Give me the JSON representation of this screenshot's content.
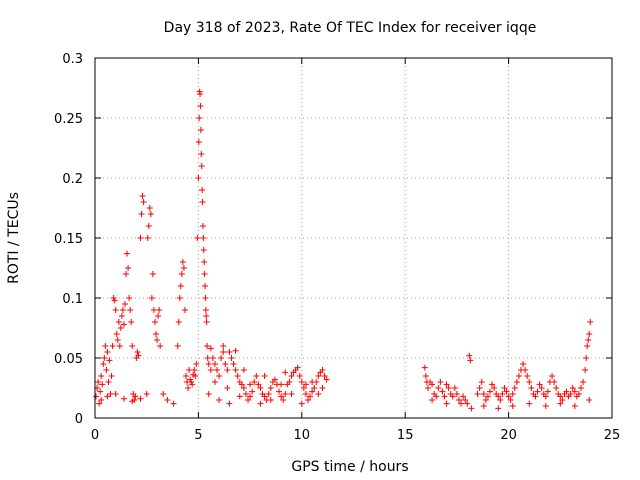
{
  "chart_data": {
    "type": "scatter",
    "title": "Day 318 of 2023, Rate Of TEC Index for receiver iqqe",
    "xlabel": "GPS time / hours",
    "ylabel": "ROTI / TECUs",
    "xlim": [
      0,
      25
    ],
    "ylim": [
      0,
      0.3
    ],
    "grid": true,
    "marker": "+",
    "color": "#ff0000",
    "x_ticks": [
      "0",
      "5",
      "10",
      "15",
      "20",
      "25"
    ],
    "y_ticks": [
      "0",
      "0.05",
      "0.1",
      "0.15",
      "0.2",
      "0.25",
      "0.3"
    ],
    "series": [
      {
        "name": "ROTI",
        "points": [
          [
            0.05,
            0.018
          ],
          [
            0.1,
            0.025
          ],
          [
            0.15,
            0.03
          ],
          [
            0.2,
            0.012
          ],
          [
            0.25,
            0.022
          ],
          [
            0.3,
            0.035
          ],
          [
            0.35,
            0.028
          ],
          [
            0.4,
            0.045
          ],
          [
            0.45,
            0.05
          ],
          [
            0.5,
            0.06
          ],
          [
            0.55,
            0.04
          ],
          [
            0.6,
            0.055
          ],
          [
            0.65,
            0.03
          ],
          [
            0.7,
            0.048
          ],
          [
            0.75,
            0.02
          ],
          [
            0.8,
            0.035
          ],
          [
            0.85,
            0.06
          ],
          [
            0.9,
            0.1
          ],
          [
            0.95,
            0.098
          ],
          [
            1.0,
            0.09
          ],
          [
            1.05,
            0.07
          ],
          [
            1.1,
            0.065
          ],
          [
            1.15,
            0.08
          ],
          [
            1.2,
            0.06
          ],
          [
            1.25,
            0.075
          ],
          [
            1.3,
            0.085
          ],
          [
            1.35,
            0.09
          ],
          [
            1.4,
            0.078
          ],
          [
            1.45,
            0.095
          ],
          [
            1.5,
            0.12
          ],
          [
            1.55,
            0.137
          ],
          [
            1.6,
            0.125
          ],
          [
            1.65,
            0.1
          ],
          [
            1.7,
            0.09
          ],
          [
            1.75,
            0.08
          ],
          [
            1.8,
            0.06
          ],
          [
            1.85,
            0.02
          ],
          [
            1.9,
            0.015
          ],
          [
            1.95,
            0.018
          ],
          [
            2.0,
            0.05
          ],
          [
            2.05,
            0.055
          ],
          [
            2.1,
            0.052
          ],
          [
            2.2,
            0.15
          ],
          [
            2.25,
            0.17
          ],
          [
            2.3,
            0.185
          ],
          [
            2.35,
            0.18
          ],
          [
            2.5,
            0.02
          ],
          [
            2.55,
            0.15
          ],
          [
            2.6,
            0.16
          ],
          [
            2.65,
            0.175
          ],
          [
            2.7,
            0.17
          ],
          [
            2.75,
            0.1
          ],
          [
            2.8,
            0.12
          ],
          [
            2.85,
            0.09
          ],
          [
            2.9,
            0.08
          ],
          [
            2.95,
            0.07
          ],
          [
            3.0,
            0.065
          ],
          [
            3.05,
            0.085
          ],
          [
            3.1,
            0.09
          ],
          [
            3.15,
            0.06
          ],
          [
            3.3,
            0.02
          ],
          [
            3.5,
            0.015
          ],
          [
            3.8,
            0.012
          ],
          [
            4.0,
            0.06
          ],
          [
            4.05,
            0.08
          ],
          [
            4.1,
            0.1
          ],
          [
            4.15,
            0.11
          ],
          [
            4.2,
            0.12
          ],
          [
            4.25,
            0.13
          ],
          [
            4.3,
            0.125
          ],
          [
            4.35,
            0.09
          ],
          [
            4.4,
            0.035
          ],
          [
            4.45,
            0.03
          ],
          [
            4.5,
            0.025
          ],
          [
            4.55,
            0.04
          ],
          [
            4.6,
            0.032
          ],
          [
            4.65,
            0.03
          ],
          [
            4.7,
            0.028
          ],
          [
            4.75,
            0.036
          ],
          [
            4.8,
            0.04
          ],
          [
            4.85,
            0.035
          ],
          [
            4.9,
            0.045
          ],
          [
            4.95,
            0.15
          ],
          [
            5.0,
            0.2
          ],
          [
            5.02,
            0.23
          ],
          [
            5.04,
            0.25
          ],
          [
            5.06,
            0.272
          ],
          [
            5.08,
            0.27
          ],
          [
            5.1,
            0.26
          ],
          [
            5.12,
            0.24
          ],
          [
            5.14,
            0.22
          ],
          [
            5.16,
            0.21
          ],
          [
            5.18,
            0.19
          ],
          [
            5.2,
            0.18
          ],
          [
            5.22,
            0.16
          ],
          [
            5.24,
            0.15
          ],
          [
            5.26,
            0.14
          ],
          [
            5.28,
            0.13
          ],
          [
            5.3,
            0.12
          ],
          [
            5.32,
            0.11
          ],
          [
            5.34,
            0.1
          ],
          [
            5.36,
            0.09
          ],
          [
            5.38,
            0.085
          ],
          [
            5.4,
            0.08
          ],
          [
            5.42,
            0.06
          ],
          [
            5.45,
            0.05
          ],
          [
            5.5,
            0.045
          ],
          [
            5.6,
            0.04
          ],
          [
            5.7,
            0.05
          ],
          [
            5.8,
            0.045
          ],
          [
            5.9,
            0.04
          ],
          [
            6.0,
            0.035
          ],
          [
            6.1,
            0.05
          ],
          [
            6.2,
            0.055
          ],
          [
            6.3,
            0.045
          ],
          [
            6.4,
            0.04
          ],
          [
            6.5,
            0.055
          ],
          [
            6.6,
            0.05
          ],
          [
            6.7,
            0.045
          ],
          [
            6.8,
            0.04
          ],
          [
            6.9,
            0.035
          ],
          [
            7.0,
            0.03
          ],
          [
            7.1,
            0.028
          ],
          [
            7.2,
            0.025
          ],
          [
            7.3,
            0.02
          ],
          [
            7.4,
            0.015
          ],
          [
            7.5,
            0.018
          ],
          [
            7.6,
            0.022
          ],
          [
            7.7,
            0.03
          ],
          [
            7.8,
            0.035
          ],
          [
            7.9,
            0.028
          ],
          [
            8.0,
            0.025
          ],
          [
            8.1,
            0.02
          ],
          [
            8.2,
            0.018
          ],
          [
            8.3,
            0.015
          ],
          [
            8.4,
            0.02
          ],
          [
            8.5,
            0.025
          ],
          [
            8.6,
            0.03
          ],
          [
            8.7,
            0.032
          ],
          [
            8.8,
            0.028
          ],
          [
            8.9,
            0.022
          ],
          [
            9.0,
            0.018
          ],
          [
            9.1,
            0.015
          ],
          [
            9.2,
            0.02
          ],
          [
            9.3,
            0.028
          ],
          [
            9.4,
            0.03
          ],
          [
            9.5,
            0.035
          ],
          [
            9.6,
            0.038
          ],
          [
            9.7,
            0.04
          ],
          [
            9.8,
            0.042
          ],
          [
            9.9,
            0.035
          ],
          [
            10.0,
            0.03
          ],
          [
            10.1,
            0.025
          ],
          [
            10.2,
            0.02
          ],
          [
            10.3,
            0.015
          ],
          [
            10.4,
            0.018
          ],
          [
            10.5,
            0.022
          ],
          [
            10.6,
            0.025
          ],
          [
            10.7,
            0.03
          ],
          [
            10.8,
            0.035
          ],
          [
            10.9,
            0.038
          ],
          [
            11.0,
            0.04
          ],
          [
            11.1,
            0.035
          ],
          [
            11.2,
            0.032
          ],
          [
            0.3,
            0.015
          ],
          [
            0.6,
            0.018
          ],
          [
            1.0,
            0.02
          ],
          [
            1.4,
            0.016
          ],
          [
            1.8,
            0.014
          ],
          [
            2.2,
            0.016
          ],
          [
            5.5,
            0.02
          ],
          [
            6.0,
            0.015
          ],
          [
            6.5,
            0.012
          ],
          [
            7.0,
            0.018
          ],
          [
            7.5,
            0.028
          ],
          [
            8.0,
            0.012
          ],
          [
            8.5,
            0.015
          ],
          [
            9.0,
            0.028
          ],
          [
            9.5,
            0.02
          ],
          [
            10.0,
            0.012
          ],
          [
            10.5,
            0.03
          ],
          [
            11.0,
            0.025
          ],
          [
            5.6,
            0.058
          ],
          [
            6.2,
            0.06
          ],
          [
            6.8,
            0.056
          ],
          [
            5.8,
            0.03
          ],
          [
            6.4,
            0.025
          ],
          [
            7.2,
            0.04
          ],
          [
            8.2,
            0.035
          ],
          [
            9.2,
            0.038
          ],
          [
            10.2,
            0.028
          ],
          [
            10.8,
            0.02
          ],
          [
            15.95,
            0.042
          ],
          [
            16.0,
            0.035
          ],
          [
            16.05,
            0.03
          ],
          [
            16.1,
            0.025
          ],
          [
            16.2,
            0.03
          ],
          [
            16.3,
            0.028
          ],
          [
            16.4,
            0.02
          ],
          [
            16.5,
            0.018
          ],
          [
            16.6,
            0.025
          ],
          [
            16.7,
            0.03
          ],
          [
            16.8,
            0.022
          ],
          [
            16.9,
            0.018
          ],
          [
            17.0,
            0.028
          ],
          [
            17.1,
            0.025
          ],
          [
            17.2,
            0.02
          ],
          [
            17.3,
            0.018
          ],
          [
            17.4,
            0.025
          ],
          [
            17.5,
            0.02
          ],
          [
            17.6,
            0.015
          ],
          [
            17.7,
            0.012
          ],
          [
            17.8,
            0.018
          ],
          [
            17.9,
            0.015
          ],
          [
            18.0,
            0.012
          ],
          [
            18.1,
            0.052
          ],
          [
            18.15,
            0.048
          ],
          [
            18.2,
            0.008
          ],
          [
            18.5,
            0.02
          ],
          [
            18.6,
            0.025
          ],
          [
            18.7,
            0.03
          ],
          [
            18.8,
            0.02
          ],
          [
            18.9,
            0.015
          ],
          [
            19.0,
            0.018
          ],
          [
            19.1,
            0.022
          ],
          [
            19.2,
            0.028
          ],
          [
            19.3,
            0.025
          ],
          [
            19.4,
            0.02
          ],
          [
            19.5,
            0.018
          ],
          [
            19.6,
            0.015
          ],
          [
            19.7,
            0.02
          ],
          [
            19.8,
            0.025
          ],
          [
            19.9,
            0.022
          ],
          [
            20.0,
            0.018
          ],
          [
            20.1,
            0.015
          ],
          [
            20.2,
            0.02
          ],
          [
            20.3,
            0.025
          ],
          [
            20.4,
            0.03
          ],
          [
            20.5,
            0.035
          ],
          [
            20.6,
            0.04
          ],
          [
            20.7,
            0.045
          ],
          [
            20.8,
            0.04
          ],
          [
            20.9,
            0.035
          ],
          [
            21.0,
            0.03
          ],
          [
            21.1,
            0.025
          ],
          [
            21.2,
            0.02
          ],
          [
            21.3,
            0.018
          ],
          [
            21.4,
            0.022
          ],
          [
            21.5,
            0.028
          ],
          [
            21.6,
            0.025
          ],
          [
            21.7,
            0.02
          ],
          [
            21.8,
            0.018
          ],
          [
            21.9,
            0.022
          ],
          [
            22.0,
            0.03
          ],
          [
            22.1,
            0.035
          ],
          [
            22.2,
            0.03
          ],
          [
            22.3,
            0.025
          ],
          [
            22.4,
            0.02
          ],
          [
            22.5,
            0.018
          ],
          [
            22.6,
            0.015
          ],
          [
            22.7,
            0.02
          ],
          [
            22.8,
            0.022
          ],
          [
            22.9,
            0.018
          ],
          [
            23.0,
            0.02
          ],
          [
            23.1,
            0.025
          ],
          [
            23.2,
            0.022
          ],
          [
            23.3,
            0.018
          ],
          [
            23.4,
            0.02
          ],
          [
            23.5,
            0.025
          ],
          [
            23.6,
            0.03
          ],
          [
            23.7,
            0.04
          ],
          [
            23.75,
            0.05
          ],
          [
            23.8,
            0.06
          ],
          [
            23.85,
            0.065
          ],
          [
            23.9,
            0.07
          ],
          [
            23.95,
            0.08
          ],
          [
            16.3,
            0.015
          ],
          [
            17.0,
            0.012
          ],
          [
            18.8,
            0.01
          ],
          [
            19.5,
            0.008
          ],
          [
            20.2,
            0.01
          ],
          [
            21.0,
            0.012
          ],
          [
            21.8,
            0.01
          ],
          [
            22.5,
            0.012
          ],
          [
            23.2,
            0.01
          ],
          [
            23.9,
            0.015
          ]
        ]
      }
    ]
  }
}
